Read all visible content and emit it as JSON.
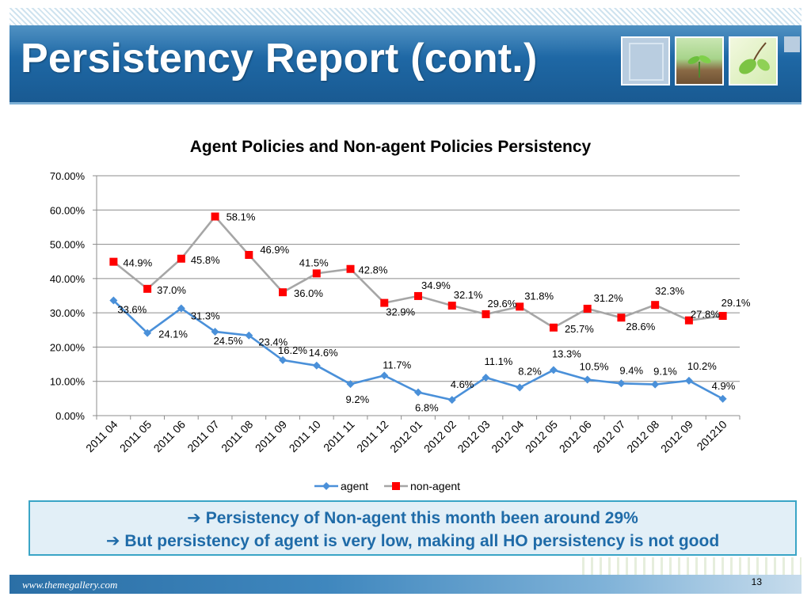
{
  "header": {
    "title": "Persistency Report (cont.)"
  },
  "chart_data": {
    "type": "line",
    "title": "Agent Policies and Non-agent Policies Persistency",
    "xlabel": "",
    "ylabel": "",
    "ylim": [
      0,
      70
    ],
    "yticks": [
      "0.00%",
      "10.00%",
      "20.00%",
      "30.00%",
      "40.00%",
      "50.00%",
      "60.00%",
      "70.00%"
    ],
    "grid": true,
    "legend_position": "bottom",
    "categories": [
      "2011 04",
      "2011 05",
      "2011 06",
      "2011 07",
      "2011 08",
      "2011 09",
      "2011 10",
      "2011 11",
      "2011 12",
      "2012 01",
      "2012 02",
      "2012 03",
      "2012 04",
      "2012 05",
      "2012 06",
      "2012 07",
      "2012 08",
      "2012 09",
      "201210"
    ],
    "series": [
      {
        "name": "agent",
        "color": "#4a90d9",
        "marker": "diamond",
        "values": [
          33.6,
          24.1,
          31.3,
          24.5,
          23.4,
          16.2,
          14.6,
          9.2,
          11.7,
          6.8,
          4.6,
          11.1,
          8.2,
          13.3,
          10.5,
          9.4,
          9.1,
          10.2,
          4.9
        ],
        "labels": [
          "33.6%",
          "24.1%",
          "31.3%",
          "24.5%",
          "23.4%",
          "16.2%",
          "14.6%",
          "9.2%",
          "11.7%",
          "6.8%",
          "4.6%",
          "11.1%",
          "8.2%",
          "13.3%",
          "10.5%",
          "9.4%",
          "9.1%",
          "10.2%",
          "4.9%"
        ]
      },
      {
        "name": "non-agent",
        "color": "#ff0000",
        "line_color": "#a6a6a6",
        "marker": "square",
        "values": [
          44.9,
          37.0,
          45.8,
          58.1,
          46.9,
          36.0,
          41.5,
          42.8,
          32.9,
          34.9,
          32.1,
          29.6,
          31.8,
          25.7,
          31.2,
          28.6,
          32.3,
          27.8,
          29.1
        ],
        "labels": [
          "44.9%",
          "37.0%",
          "45.8%",
          "58.1%",
          "46.9%",
          "36.0%",
          "41.5%",
          "42.8%",
          "32.9%",
          "34.9%",
          "32.1%",
          "29.6%",
          "31.8%",
          "25.7%",
          "31.2%",
          "28.6%",
          "32.3%",
          "27.8%",
          "29.1%"
        ]
      }
    ]
  },
  "callout": {
    "arrow": "➔",
    "line1": "Persistency of Non-agent this month been around 29%",
    "line2": "But persistency of agent is very low, making all HO persistency is not good"
  },
  "footer": {
    "url": "www.themegallery.com",
    "page_number": "13"
  }
}
